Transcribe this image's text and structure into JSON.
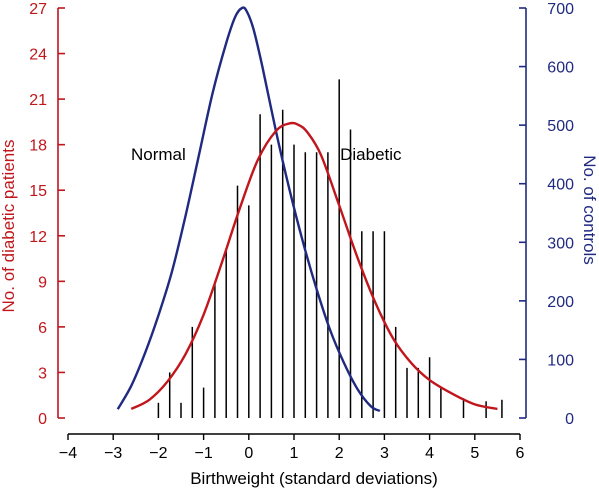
{
  "chart_data": {
    "type": "bar",
    "xlabel": "Birthweight (standard deviations)",
    "ylabel_left": "No. of diabetic patients",
    "ylabel_right": "No. of controls",
    "xlim": [
      -4,
      6
    ],
    "x_ticks": [
      "−4",
      "−3",
      "−2",
      "−1",
      "0",
      "1",
      "2",
      "3",
      "4",
      "5",
      "6"
    ],
    "y_left_lim": [
      0,
      27
    ],
    "y_left_ticks": [
      "0",
      "3",
      "6",
      "9",
      "12",
      "15",
      "18",
      "21",
      "24",
      "27"
    ],
    "y_right_lim": [
      0,
      700
    ],
    "y_right_ticks": [
      "0",
      "100",
      "200",
      "300",
      "400",
      "500",
      "600",
      "700"
    ],
    "colors": {
      "left_axis": "#c0161c",
      "right_axis": "#1f2a80",
      "bars": "#000000",
      "normal_curve": "#1f2a80",
      "diabetic_curve": "#c0161c"
    },
    "annotations": [
      {
        "text": "Normal",
        "x": -2.0,
        "y": 17.0
      },
      {
        "text": "Diabetic",
        "x": 2.7,
        "y": 17.0
      }
    ],
    "bars": {
      "x": [
        -2.0,
        -1.75,
        -1.5,
        -1.25,
        -1.0,
        -0.75,
        -0.5,
        -0.25,
        0.0,
        0.25,
        0.5,
        0.75,
        1.0,
        1.25,
        1.5,
        1.75,
        2.0,
        2.25,
        2.5,
        2.75,
        3.0,
        3.25,
        3.5,
        3.75,
        4.0,
        4.25,
        4.75,
        5.25,
        5.6
      ],
      "values": [
        1,
        3,
        1,
        6,
        2,
        9,
        11,
        15.3,
        14,
        20,
        18,
        20.3,
        18,
        17.5,
        17.5,
        17.5,
        22.3,
        19,
        12.3,
        12.3,
        12.3,
        6,
        3.3,
        3.3,
        4,
        2,
        1.3,
        1.1,
        1.2
      ]
    },
    "series": [
      {
        "axis": "right",
        "x": [
          -2.9,
          -2.6,
          -2.3,
          -2.0,
          -1.7,
          -1.4,
          -1.1,
          -0.8,
          -0.5,
          -0.3,
          -0.15,
          -0.05,
          0.1,
          0.3,
          0.6,
          0.9,
          1.2,
          1.5,
          1.8,
          2.1,
          2.4,
          2.7,
          2.9
        ],
        "values": [
          15,
          55,
          110,
          175,
          250,
          345,
          450,
          555,
          640,
          685,
          700,
          695,
          665,
          600,
          490,
          390,
          300,
          220,
          150,
          95,
          50,
          20,
          12
        ]
      },
      {
        "axis": "left",
        "x": [
          -2.6,
          -2.2,
          -1.8,
          -1.4,
          -1.0,
          -0.6,
          -0.2,
          0.2,
          0.6,
          0.9,
          1.1,
          1.3,
          1.6,
          2.0,
          2.4,
          2.8,
          3.2,
          3.6,
          4.0,
          4.5,
          5.0,
          5.5
        ],
        "values": [
          0.6,
          1.2,
          2.4,
          4.2,
          6.8,
          10.2,
          13.8,
          17.0,
          18.9,
          19.4,
          19.3,
          18.8,
          17.3,
          14.0,
          10.6,
          7.6,
          5.2,
          3.6,
          2.5,
          1.6,
          0.9,
          0.6
        ]
      }
    ]
  }
}
